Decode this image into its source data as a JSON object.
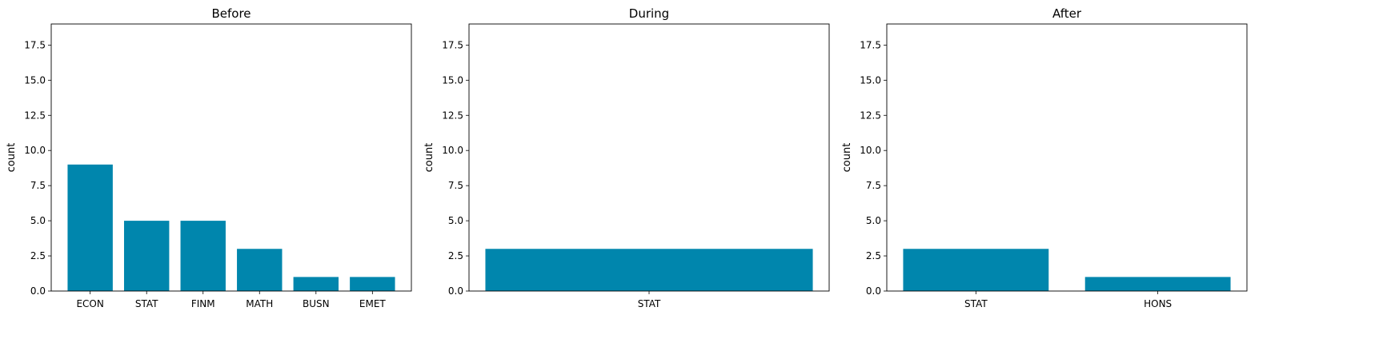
{
  "chart_data": [
    {
      "type": "bar",
      "title": "Before",
      "ylabel": "count",
      "xlabel": "",
      "ylim": [
        0,
        19
      ],
      "yticks": [
        "0.0",
        "2.5",
        "5.0",
        "7.5",
        "10.0",
        "12.5",
        "15.0",
        "17.5"
      ],
      "categories": [
        "ECON",
        "STAT",
        "FINM",
        "MATH",
        "BUSN",
        "EMET"
      ],
      "values": [
        9,
        5,
        5,
        3,
        1,
        1
      ],
      "bar_color": "#0086ad",
      "grid": false
    },
    {
      "type": "bar",
      "title": "During",
      "ylabel": "count",
      "xlabel": "",
      "ylim": [
        0,
        19
      ],
      "yticks": [
        "0.0",
        "2.5",
        "5.0",
        "7.5",
        "10.0",
        "12.5",
        "15.0",
        "17.5"
      ],
      "categories": [
        "STAT"
      ],
      "values": [
        3
      ],
      "bar_color": "#0086ad",
      "grid": false
    },
    {
      "type": "bar",
      "title": "After",
      "ylabel": "count",
      "xlabel": "",
      "ylim": [
        0,
        19
      ],
      "yticks": [
        "0.0",
        "2.5",
        "5.0",
        "7.5",
        "10.0",
        "12.5",
        "15.0",
        "17.5"
      ],
      "categories": [
        "STAT",
        "HONS"
      ],
      "values": [
        3,
        1
      ],
      "bar_color": "#0086ad",
      "grid": false
    }
  ]
}
